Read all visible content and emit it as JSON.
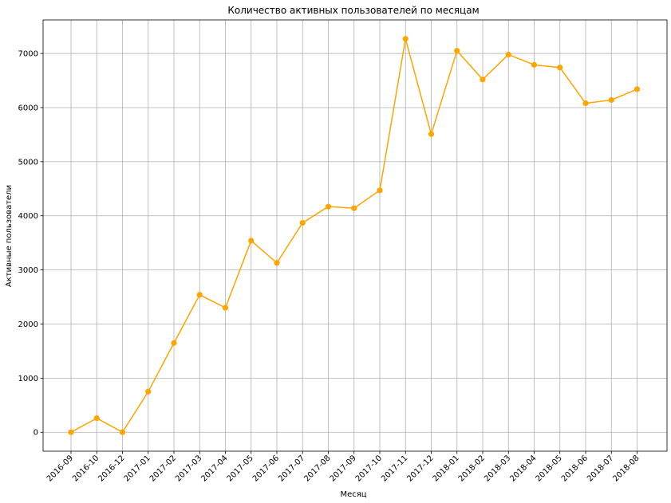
{
  "chart_data": {
    "type": "line",
    "title": "Количество активных пользователей по месяцам",
    "xlabel": "Месяц",
    "ylabel": "Активные пользователи",
    "categories": [
      "2016-09",
      "2016-10",
      "2016-12",
      "2017-01",
      "2017-02",
      "2017-03",
      "2017-04",
      "2017-05",
      "2017-06",
      "2017-07",
      "2017-08",
      "2017-09",
      "2017-10",
      "2017-11",
      "2017-12",
      "2018-01",
      "2018-02",
      "2018-03",
      "2018-04",
      "2018-05",
      "2018-06",
      "2018-07",
      "2018-08"
    ],
    "series": [
      {
        "values": [
          1,
          260,
          1,
          750,
          1650,
          2540,
          2300,
          3540,
          3130,
          3870,
          4170,
          4140,
          4470,
          7270,
          5510,
          7050,
          6520,
          6980,
          6790,
          6740,
          6080,
          6140,
          6340
        ]
      }
    ],
    "ylim": [
      -350,
      7620
    ],
    "yticks": [
      0,
      1000,
      2000,
      3000,
      4000,
      5000,
      6000,
      7000
    ],
    "grid": true,
    "color": "#ffa500"
  }
}
